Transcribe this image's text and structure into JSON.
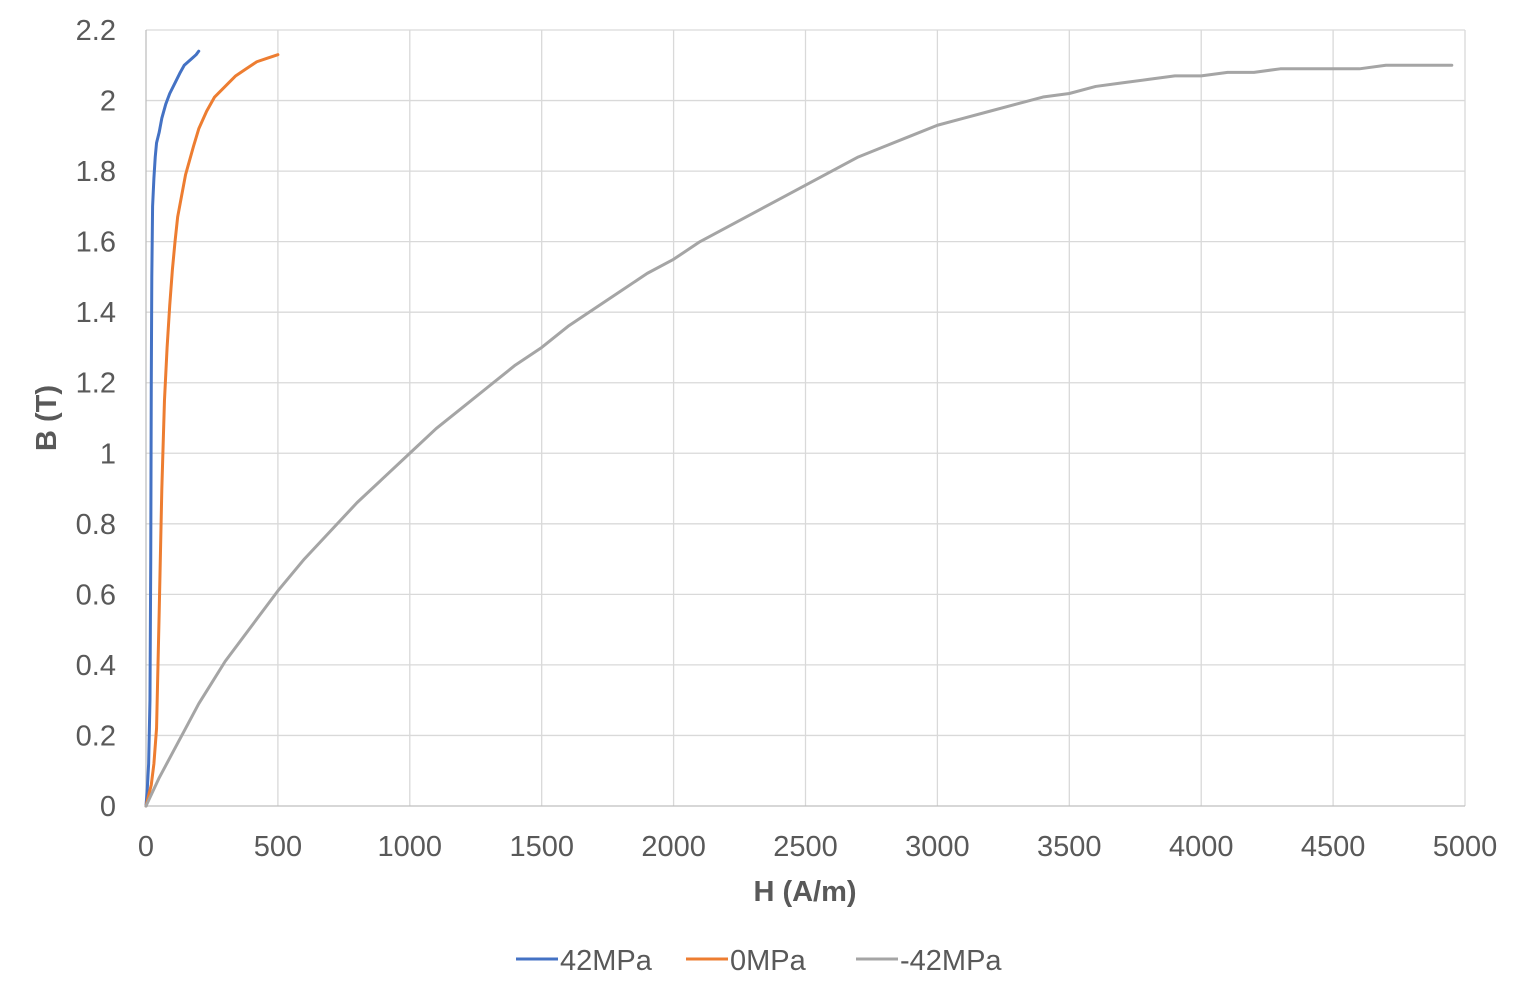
{
  "chart_data": {
    "type": "line",
    "title": "",
    "xlabel": "H (A/m)",
    "ylabel": "B (T)",
    "xlim": [
      0,
      5000
    ],
    "ylim": [
      0,
      2.2
    ],
    "x_ticks": [
      0,
      500,
      1000,
      1500,
      2000,
      2500,
      3000,
      3500,
      4000,
      4500,
      5000
    ],
    "y_ticks": [
      0,
      0.2,
      0.4,
      0.6,
      0.8,
      1,
      1.2,
      1.4,
      1.6,
      1.8,
      2,
      2.2
    ],
    "x_tick_labels": [
      "0",
      "500",
      "1000",
      "1500",
      "2000",
      "2500",
      "3000",
      "3500",
      "4000",
      "4500",
      "5000"
    ],
    "y_tick_labels": [
      "0",
      "0.2",
      "0.4",
      "0.6",
      "0.8",
      "1",
      "1.2",
      "1.4",
      "1.6",
      "1.8",
      "2",
      "2.2"
    ],
    "grid": true,
    "legend_position": "bottom",
    "series": [
      {
        "name": "42MPa",
        "color": "#4472c4",
        "points": [
          [
            0,
            0
          ],
          [
            5,
            0.05
          ],
          [
            10,
            0.12
          ],
          [
            15,
            0.3
          ],
          [
            18,
            0.7
          ],
          [
            20,
            1.2
          ],
          [
            22,
            1.5
          ],
          [
            25,
            1.7
          ],
          [
            30,
            1.78
          ],
          [
            35,
            1.84
          ],
          [
            40,
            1.88
          ],
          [
            50,
            1.91
          ],
          [
            60,
            1.95
          ],
          [
            75,
            1.99
          ],
          [
            90,
            2.02
          ],
          [
            110,
            2.05
          ],
          [
            130,
            2.08
          ],
          [
            145,
            2.1
          ],
          [
            160,
            2.11
          ],
          [
            175,
            2.12
          ],
          [
            190,
            2.13
          ],
          [
            200,
            2.14
          ]
        ]
      },
      {
        "name": "0MPa",
        "color": "#ed7d31",
        "points": [
          [
            0,
            0
          ],
          [
            20,
            0.06
          ],
          [
            30,
            0.12
          ],
          [
            40,
            0.22
          ],
          [
            50,
            0.55
          ],
          [
            60,
            0.9
          ],
          [
            70,
            1.15
          ],
          [
            80,
            1.3
          ],
          [
            90,
            1.42
          ],
          [
            100,
            1.52
          ],
          [
            110,
            1.6
          ],
          [
            120,
            1.67
          ],
          [
            135,
            1.73
          ],
          [
            150,
            1.79
          ],
          [
            165,
            1.83
          ],
          [
            180,
            1.87
          ],
          [
            200,
            1.92
          ],
          [
            230,
            1.97
          ],
          [
            260,
            2.01
          ],
          [
            300,
            2.04
          ],
          [
            340,
            2.07
          ],
          [
            380,
            2.09
          ],
          [
            420,
            2.11
          ],
          [
            460,
            2.12
          ],
          [
            500,
            2.13
          ]
        ]
      },
      {
        "name": "-42MPa",
        "color": "#a5a5a5",
        "points": [
          [
            0,
            0
          ],
          [
            50,
            0.08
          ],
          [
            100,
            0.15
          ],
          [
            150,
            0.22
          ],
          [
            200,
            0.29
          ],
          [
            250,
            0.35
          ],
          [
            300,
            0.41
          ],
          [
            400,
            0.51
          ],
          [
            500,
            0.61
          ],
          [
            600,
            0.7
          ],
          [
            700,
            0.78
          ],
          [
            800,
            0.86
          ],
          [
            900,
            0.93
          ],
          [
            1000,
            1.0
          ],
          [
            1100,
            1.07
          ],
          [
            1200,
            1.13
          ],
          [
            1300,
            1.19
          ],
          [
            1400,
            1.25
          ],
          [
            1500,
            1.3
          ],
          [
            1600,
            1.36
          ],
          [
            1700,
            1.41
          ],
          [
            1800,
            1.46
          ],
          [
            1900,
            1.51
          ],
          [
            2000,
            1.55
          ],
          [
            2100,
            1.6
          ],
          [
            2200,
            1.64
          ],
          [
            2300,
            1.68
          ],
          [
            2400,
            1.72
          ],
          [
            2500,
            1.76
          ],
          [
            2600,
            1.8
          ],
          [
            2700,
            1.84
          ],
          [
            2800,
            1.87
          ],
          [
            2900,
            1.9
          ],
          [
            3000,
            1.93
          ],
          [
            3100,
            1.95
          ],
          [
            3200,
            1.97
          ],
          [
            3300,
            1.99
          ],
          [
            3400,
            2.01
          ],
          [
            3500,
            2.02
          ],
          [
            3600,
            2.04
          ],
          [
            3700,
            2.05
          ],
          [
            3800,
            2.06
          ],
          [
            3900,
            2.07
          ],
          [
            4000,
            2.07
          ],
          [
            4100,
            2.08
          ],
          [
            4200,
            2.08
          ],
          [
            4300,
            2.09
          ],
          [
            4400,
            2.09
          ],
          [
            4500,
            2.09
          ],
          [
            4600,
            2.09
          ],
          [
            4700,
            2.1
          ],
          [
            4800,
            2.1
          ],
          [
            4900,
            2.1
          ],
          [
            4950,
            2.1
          ]
        ]
      }
    ]
  }
}
